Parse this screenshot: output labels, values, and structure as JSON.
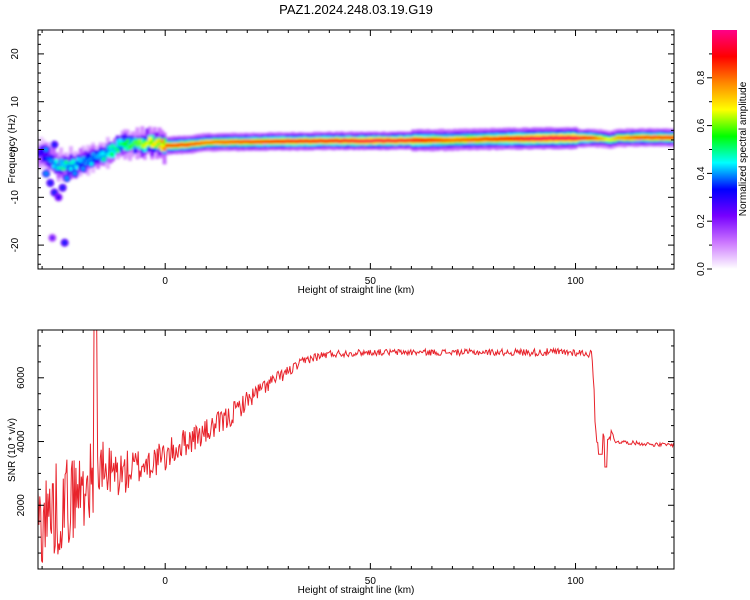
{
  "title": "PAZ1.2024.248.03.19.G19",
  "chart_data": [
    {
      "type": "heatmap",
      "xlabel": "Height of straight line (km)",
      "ylabel": "Frequency (Hz)",
      "xlim": [
        -31,
        124
      ],
      "ylim": [
        -25,
        25
      ],
      "xticks": [
        0,
        50,
        100
      ],
      "yticks": [
        -20,
        -10,
        0,
        10,
        20
      ],
      "colorbar": {
        "label": "Normalized spectral amplitude",
        "range": [
          0,
          1
        ],
        "ticks": [
          "0.0",
          "0.2",
          "0.4",
          "0.6",
          "0.8"
        ],
        "colors": [
          "#ffffff",
          "#cc77ff",
          "#7700ff",
          "#0000ff",
          "#00ffff",
          "#00ff00",
          "#ffff00",
          "#ff8800",
          "#ff0000",
          "#ff0088"
        ]
      },
      "ridge": {
        "x": [
          -30,
          -27,
          -25,
          -22,
          -20,
          -17,
          -15,
          -12,
          -10,
          -7,
          -5,
          -2,
          0,
          5,
          10,
          20,
          30,
          40,
          50,
          60,
          70,
          80,
          90,
          100,
          104,
          106,
          108,
          110,
          115,
          120,
          124
        ],
        "y": [
          -1,
          -3,
          -3.5,
          -3,
          -2.5,
          -1.5,
          -1,
          0.5,
          1,
          1.3,
          1.5,
          1.2,
          0.8,
          1,
          1.5,
          1.6,
          1.7,
          1.8,
          1.8,
          1.9,
          2,
          2.2,
          2.3,
          2.4,
          2.4,
          2.3,
          2,
          2.4,
          2.5,
          2.5,
          2.5
        ],
        "amp": [
          0.3,
          0.45,
          0.5,
          0.45,
          0.4,
          0.4,
          0.45,
          0.5,
          0.55,
          0.6,
          0.65,
          0.7,
          0.85,
          0.85,
          0.8,
          0.85,
          0.9,
          0.9,
          0.95,
          0.92,
          0.8,
          0.85,
          0.95,
          0.95,
          0.85,
          0.75,
          0.65,
          0.75,
          0.85,
          0.85,
          0.85
        ]
      }
    },
    {
      "type": "line",
      "xlabel": "Height of straight line (km)",
      "ylabel": "SNR (10 * v/v)",
      "xlim": [
        -31,
        124
      ],
      "ylim": [
        0,
        7500
      ],
      "xticks": [
        0,
        50,
        100
      ],
      "yticks": [
        2000,
        4000,
        6000
      ],
      "series": [
        {
          "color": "#e8232b",
          "x": [
            -31,
            -25,
            -20,
            -17,
            -15,
            -10,
            -5,
            0,
            5,
            10,
            15,
            20,
            25,
            30,
            35,
            40,
            50,
            60,
            70,
            80,
            90,
            95,
            100,
            104,
            105,
            106,
            108,
            110,
            115,
            120,
            124
          ],
          "y": [
            1500,
            2000,
            2500,
            3000,
            3000,
            3000,
            3300,
            3500,
            4000,
            4300,
            4700,
            5300,
            5800,
            6200,
            6600,
            6750,
            6800,
            6800,
            6800,
            6800,
            6800,
            6800,
            6800,
            6750,
            4200,
            4000,
            4300,
            4000,
            3950,
            3900,
            3900
          ],
          "noise": [
            1500,
            1500,
            1300,
            1100,
            1000,
            700,
            600,
            500,
            450,
            400,
            400,
            300,
            250,
            180,
            150,
            120,
            100,
            100,
            100,
            100,
            120,
            130,
            120,
            120,
            300,
            300,
            300,
            60,
            60,
            60,
            60
          ]
        }
      ]
    }
  ]
}
